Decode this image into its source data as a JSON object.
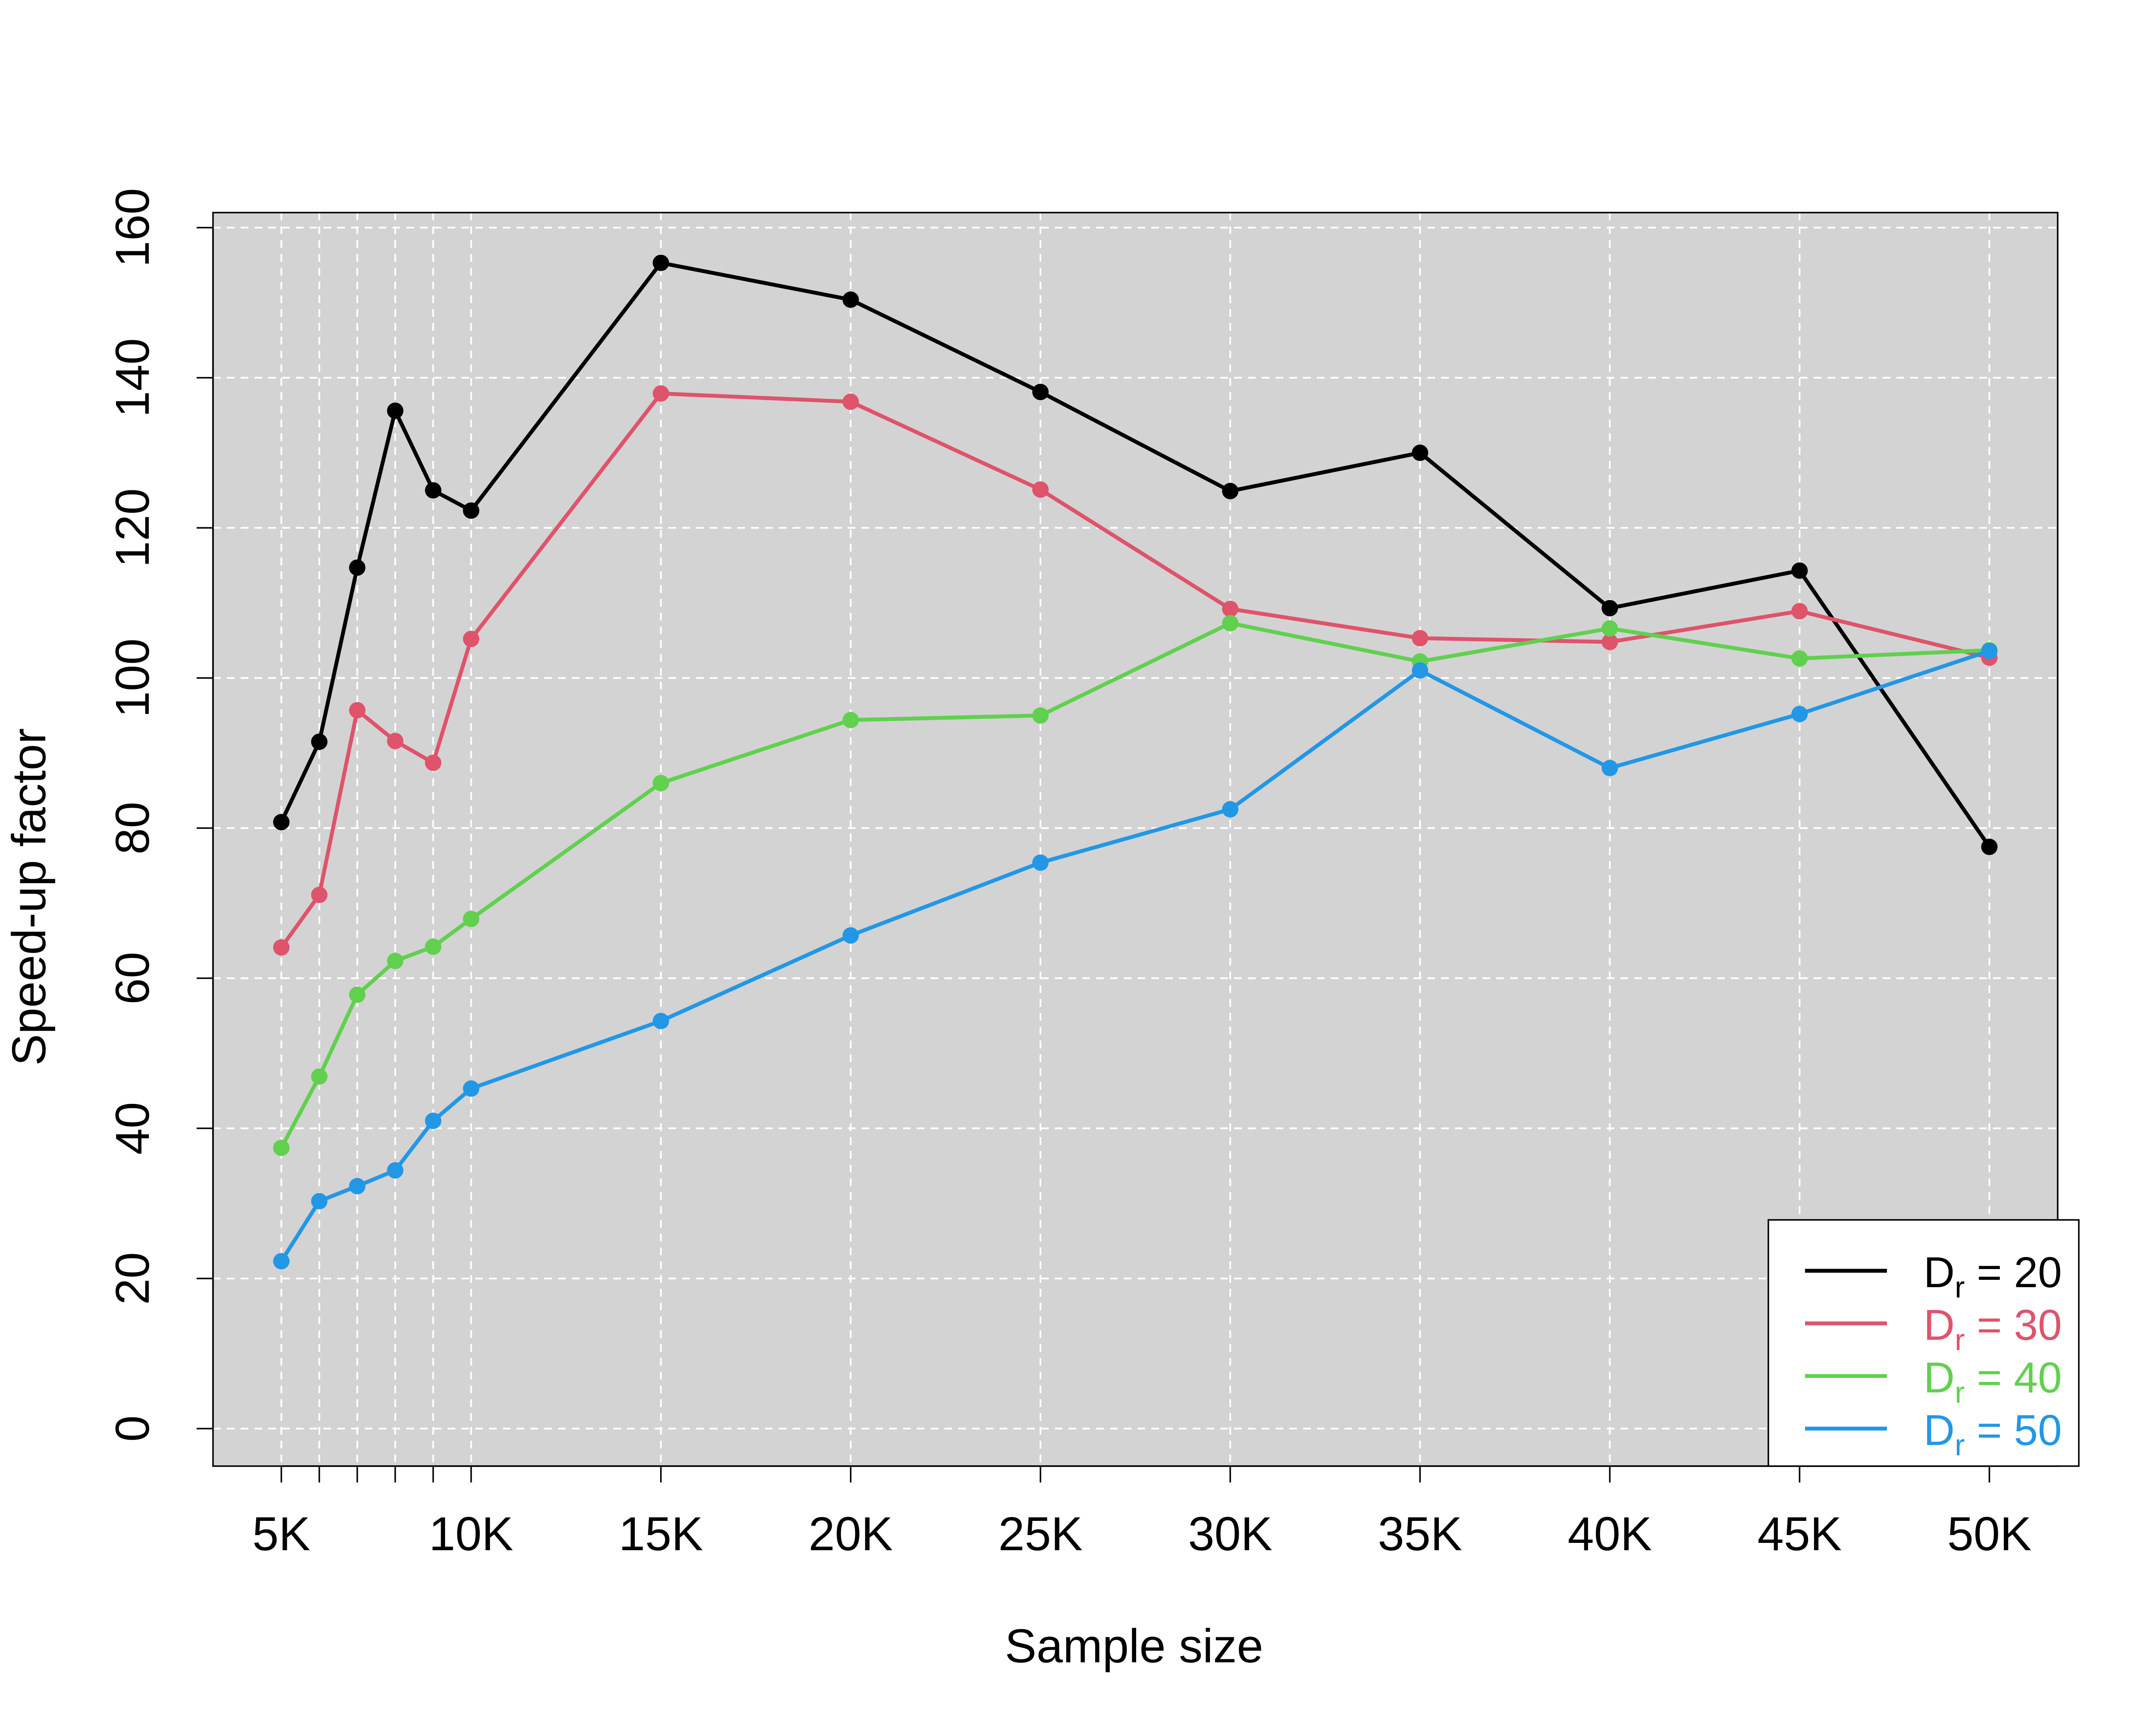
{
  "chart_data": {
    "type": "line",
    "title": "",
    "xlabel": "Sample size",
    "ylabel": "Speed-up factor",
    "x": [
      5000,
      6000,
      7000,
      8000,
      9000,
      10000,
      15000,
      20000,
      25000,
      30000,
      35000,
      40000,
      45000,
      50000
    ],
    "x_tick_values": [
      5000,
      10000,
      15000,
      20000,
      25000,
      30000,
      35000,
      40000,
      45000,
      50000
    ],
    "x_tick_labels": [
      "5K",
      "10K",
      "15K",
      "20K",
      "25K",
      "30K",
      "35K",
      "40K",
      "45K",
      "50K"
    ],
    "y_ticks": [
      0,
      20,
      40,
      60,
      80,
      100,
      120,
      140,
      160
    ],
    "xlim": [
      3200,
      51800
    ],
    "ylim": [
      -5,
      162
    ],
    "grid": true,
    "background": "#d3d3d3",
    "legend_position": "bottom-right",
    "series": [
      {
        "name": "D_r = 20",
        "legend_sym": "D",
        "legend_sub": "r",
        "legend_rest": " = 20",
        "color": "#000000",
        "values": [
          80.8,
          91.5,
          114.7,
          135.6,
          125.0,
          122.3,
          155.3,
          150.4,
          138.1,
          124.9,
          130.0,
          109.3,
          114.3,
          77.5
        ]
      },
      {
        "name": "D_r = 30",
        "legend_sym": "D",
        "legend_sub": "r",
        "legend_rest": " = 30",
        "color": "#df536b",
        "values": [
          64.1,
          71.1,
          95.7,
          91.6,
          88.7,
          105.2,
          137.9,
          136.8,
          125.1,
          109.2,
          105.3,
          104.8,
          108.9,
          102.7
        ]
      },
      {
        "name": "D_r = 40",
        "legend_sym": "D",
        "legend_sub": "r",
        "legend_rest": " = 40",
        "color": "#61d04f",
        "values": [
          37.4,
          46.9,
          57.8,
          62.3,
          64.2,
          67.9,
          86.0,
          94.4,
          95.0,
          107.3,
          102.2,
          106.6,
          102.6,
          103.7
        ]
      },
      {
        "name": "D_r = 50",
        "legend_sym": "D",
        "legend_sub": "r",
        "legend_rest": " = 50",
        "color": "#2297e6",
        "values": [
          22.3,
          30.3,
          32.3,
          34.4,
          41.0,
          45.3,
          54.3,
          65.7,
          75.4,
          82.5,
          101.0,
          88.0,
          95.2,
          103.6
        ]
      }
    ]
  }
}
